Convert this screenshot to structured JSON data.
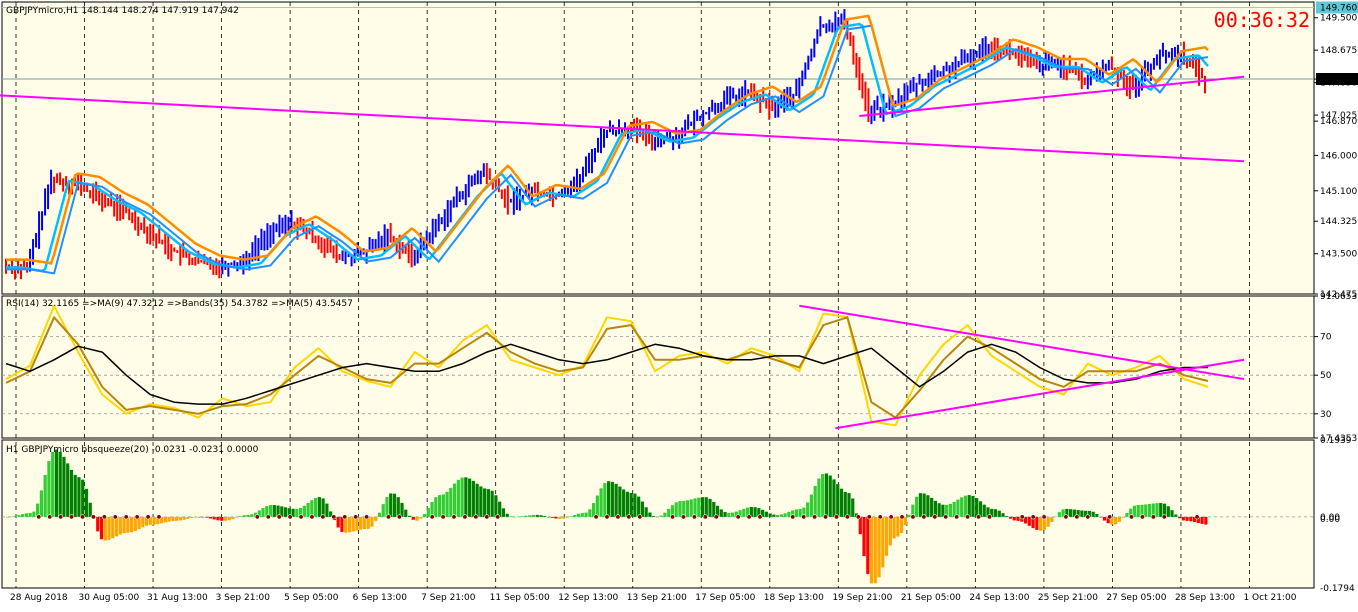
{
  "window": {
    "symbol_title": "GBPJPYmicro,H1  148.144 148.274 147.919 147.942",
    "timer": "00:36:32",
    "colors": {
      "background": "#fffde7",
      "grid": "#000000",
      "bull_bar": "#0000ff",
      "bear_bar": "#ff0000",
      "ema_fast": "#00bfff",
      "ema_slow": "#1e90ff",
      "ma_orange": "#ff8c00",
      "trendline": "#ff00ff",
      "rsi": "#ffd700",
      "rsi_ma": "#b8860b",
      "bands": "#000000",
      "timer": "#ff0000",
      "hist_green_dark": "#008000",
      "hist_green_light": "#32cd32",
      "hist_red": "#ff0000",
      "hist_orange": "#ffa500"
    }
  },
  "chart_data": [
    {
      "type": "candlestick",
      "panel": "price",
      "title": "GBPJPYmicro,H1  148.144 148.274 147.919 147.942",
      "y_ticks": [
        "149.500",
        "148.675",
        "147.942",
        "147.850",
        "147.025",
        "146.870",
        "146.000",
        "145.100",
        "144.325",
        "143.500",
        "142.475"
      ],
      "ylim": [
        142.475,
        149.9
      ],
      "price_labels": {
        "high_line": "149.760",
        "current": "147.942"
      },
      "x_labels": [
        "28 Aug 2018",
        "30 Aug 05:00",
        "31 Aug 13:00",
        "3 Sep 21:00",
        "5 Sep 05:00",
        "6 Sep 13:00",
        "7 Sep 21:00",
        "11 Sep 05:00",
        "12 Sep 13:00",
        "13 Sep 21:00",
        "17 Sep 05:00",
        "18 Sep 13:00",
        "19 Sep 21:00",
        "21 Sep 05:00",
        "24 Sep 13:00",
        "25 Sep 21:00",
        "27 Sep 05:00",
        "28 Sep 13:00",
        "1 Oct 21:00"
      ],
      "close_path": [
        [
          0,
          143.2
        ],
        [
          1,
          143.1
        ],
        [
          2,
          145.4
        ],
        [
          3,
          145.3
        ],
        [
          4,
          144.9
        ],
        [
          5,
          144.6
        ],
        [
          6,
          144.1
        ],
        [
          7,
          143.6
        ],
        [
          8,
          143.3
        ],
        [
          9,
          143.2
        ],
        [
          10,
          143.3
        ],
        [
          11,
          144.0
        ],
        [
          12,
          144.3
        ],
        [
          13,
          143.9
        ],
        [
          14,
          143.4
        ],
        [
          15,
          143.5
        ],
        [
          16,
          144.0
        ],
        [
          17,
          143.4
        ],
        [
          18,
          144.2
        ],
        [
          19,
          145.0
        ],
        [
          20,
          145.6
        ],
        [
          21,
          144.8
        ],
        [
          22,
          145.1
        ],
        [
          23,
          145.0
        ],
        [
          24,
          145.4
        ],
        [
          25,
          146.6
        ],
        [
          26,
          146.7
        ],
        [
          27,
          146.4
        ],
        [
          28,
          146.5
        ],
        [
          29,
          147.0
        ],
        [
          30,
          147.4
        ],
        [
          31,
          147.6
        ],
        [
          32,
          147.2
        ],
        [
          33,
          147.6
        ],
        [
          34,
          149.3
        ],
        [
          35,
          149.4
        ],
        [
          36,
          147.1
        ],
        [
          37,
          147.3
        ],
        [
          38,
          147.8
        ],
        [
          39,
          148.1
        ],
        [
          40,
          148.4
        ],
        [
          41,
          148.8
        ],
        [
          42,
          148.6
        ],
        [
          43,
          148.3
        ],
        [
          44,
          148.3
        ],
        [
          45,
          147.9
        ],
        [
          46,
          148.3
        ],
        [
          47,
          147.7
        ],
        [
          48,
          148.5
        ],
        [
          49,
          148.6
        ],
        [
          50,
          147.9
        ]
      ],
      "trendlines": [
        {
          "from": [
            -1,
            147.55
          ],
          "to": [
            51.5,
            145.85
          ]
        },
        {
          "from": [
            35.5,
            147.0
          ],
          "to": [
            51.5,
            148.0
          ]
        }
      ]
    },
    {
      "type": "line",
      "panel": "rsi",
      "title": "RSI(14) 32.1165  =>MA(9) 47.3212  =>Bands(35) 54.3782  =>MA(5) 43.5457",
      "y_ticks": [
        "91.0653",
        "70",
        "50",
        "30",
        "17.4353"
      ],
      "ylim": [
        17.4353,
        91.0653
      ],
      "levels": [
        70,
        50,
        30
      ],
      "series": [
        {
          "values": [
            48,
            55,
            86,
            62,
            40,
            30,
            35,
            33,
            28,
            38,
            34,
            36,
            54,
            64,
            52,
            47,
            44,
            62,
            54,
            68,
            76,
            58,
            54,
            50,
            55,
            80,
            78,
            52,
            60,
            62,
            56,
            64,
            60,
            52,
            82,
            80,
            26,
            24,
            50,
            66,
            76,
            60,
            52,
            44,
            40,
            56,
            50,
            54,
            60,
            48,
            44
          ]
        },
        {
          "values": [
            46,
            52,
            80,
            66,
            44,
            32,
            34,
            32,
            30,
            34,
            35,
            40,
            50,
            60,
            54,
            48,
            46,
            56,
            56,
            64,
            72,
            62,
            56,
            52,
            54,
            74,
            76,
            58,
            58,
            60,
            58,
            62,
            58,
            54,
            76,
            80,
            36,
            28,
            42,
            58,
            70,
            64,
            56,
            48,
            44,
            52,
            52,
            52,
            56,
            50,
            47
          ]
        },
        {
          "values": [
            56,
            52,
            58,
            65,
            62,
            50,
            40,
            36,
            35,
            35,
            38,
            42,
            46,
            50,
            54,
            56,
            54,
            52,
            52,
            56,
            62,
            66,
            62,
            58,
            56,
            58,
            62,
            66,
            64,
            60,
            58,
            58,
            60,
            60,
            56,
            60,
            64,
            54,
            44,
            52,
            62,
            66,
            62,
            54,
            48,
            46,
            46,
            48,
            52,
            54,
            54
          ]
        }
      ],
      "trendlines": [
        {
          "from": [
            33,
            86
          ],
          "to": [
            51.5,
            48
          ]
        },
        {
          "from": [
            34.5,
            22.5
          ],
          "to": [
            51.5,
            58
          ]
        }
      ]
    },
    {
      "type": "bar",
      "panel": "bbsqueeze",
      "title": "H1 GBPJPYmicro bbsqueeze(20) -0.0231 -0.0231 0.0000",
      "y_ticks": [
        "0.1939",
        "0.00",
        "0.00",
        "-0.1794"
      ],
      "ylim": [
        -0.1794,
        0.1939
      ],
      "values": [
        0,
        0.01,
        0.17,
        0.1,
        -0.06,
        -0.04,
        -0.02,
        -0.01,
        0,
        -0.01,
        0.005,
        0.03,
        0.02,
        0.05,
        -0.04,
        -0.03,
        0.06,
        -0.01,
        0.055,
        0.1,
        0.07,
        0,
        0.005,
        -0.005,
        0.01,
        0.09,
        0.06,
        0,
        0.04,
        0.05,
        0.01,
        0.025,
        0.005,
        0.02,
        0.11,
        0.06,
        -0.17,
        -0.05,
        0.06,
        0.03,
        0.055,
        0.02,
        -0.01,
        -0.035,
        0.02,
        0.015,
        -0.02,
        0.03,
        0.035,
        -0.01,
        -0.02
      ]
    }
  ]
}
